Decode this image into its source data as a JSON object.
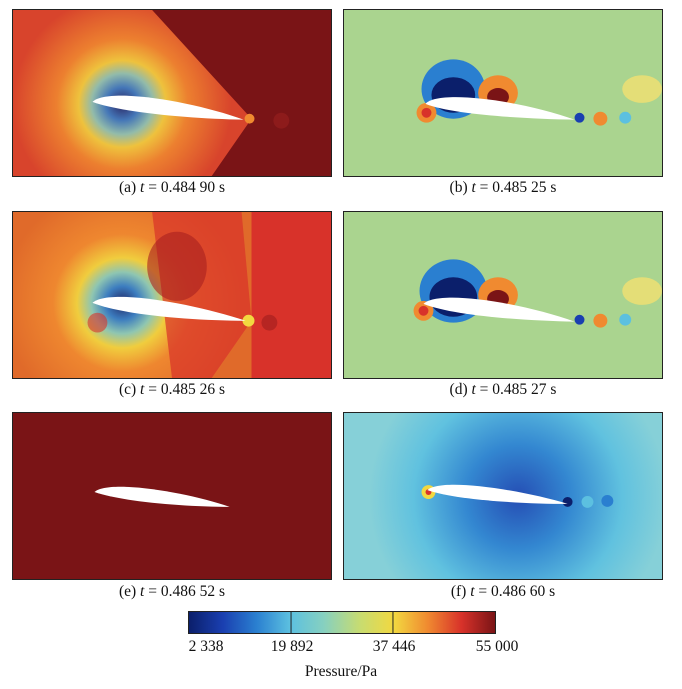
{
  "figure": {
    "panels": [
      {
        "id": "a",
        "prefix": "(a) ",
        "var": "t",
        "value": " = 0.484 90 s"
      },
      {
        "id": "b",
        "prefix": "(b) ",
        "var": "t",
        "value": " = 0.485 25 s"
      },
      {
        "id": "c",
        "prefix": "(c) ",
        "var": "t",
        "value": " = 0.485 26 s"
      },
      {
        "id": "d",
        "prefix": "(d) ",
        "var": "t",
        "value": " = 0.485 27 s"
      },
      {
        "id": "e",
        "prefix": "(e) ",
        "var": "t",
        "value": " = 0.486 52 s"
      },
      {
        "id": "f",
        "prefix": "(f) ",
        "var": "t",
        "value": " = 0.486 60 s"
      }
    ],
    "colorbar": {
      "ticks": [
        "2 338",
        "19 892",
        "37 446",
        "55 000"
      ],
      "label": "Pressure/Pa",
      "colors": [
        "#0b1f6b",
        "#1a3fb0",
        "#2a7fd0",
        "#5cc0e0",
        "#86d0c0",
        "#c8dc70",
        "#f2d840",
        "#f08a30",
        "#d8322a",
        "#7a1416"
      ]
    }
  }
}
